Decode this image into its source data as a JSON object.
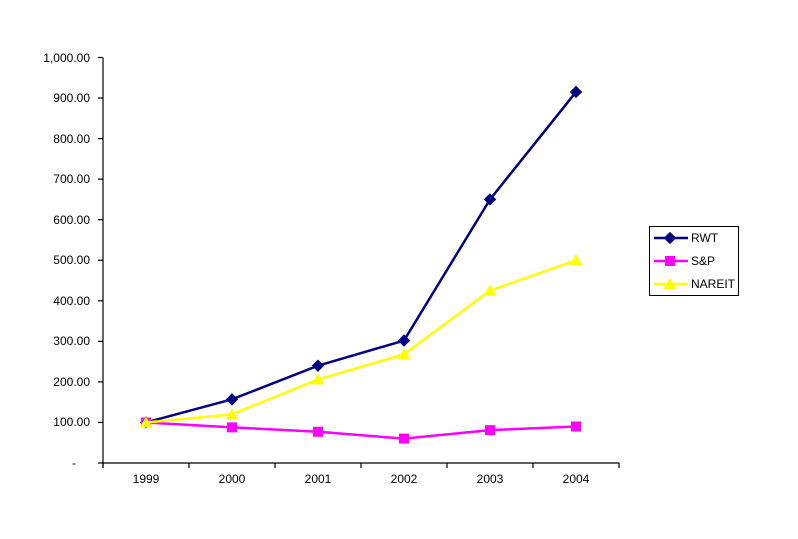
{
  "chart_data": {
    "type": "line",
    "title": "",
    "xlabel": "",
    "ylabel": "",
    "grid": false,
    "background": "#ffffff",
    "axis_color": "#000000",
    "x_categories": [
      "1999",
      "2000",
      "2001",
      "2002",
      "2003",
      "2004"
    ],
    "series": [
      {
        "name": "RWT",
        "color": "#000080",
        "marker": "diamond",
        "values": [
          100,
          157,
          240,
          302,
          650,
          915
        ]
      },
      {
        "name": "S&P",
        "color": "#FF00FF",
        "marker": "square",
        "values": [
          100,
          88,
          77,
          60,
          81,
          90
        ]
      },
      {
        "name": "NAREIT",
        "color": "#FFFF00",
        "marker": "triangle",
        "values": [
          100,
          120,
          206,
          268,
          425,
          500
        ]
      }
    ],
    "y_axis": {
      "min": 0,
      "max": 1000,
      "step": 100,
      "tick_labels": [
        "-",
        "100.00",
        "200.00",
        "300.00",
        "400.00",
        "500.00",
        "600.00",
        "700.00",
        "800.00",
        "900.00",
        "1,000.00"
      ]
    },
    "legend": {
      "position": "right",
      "labels": [
        "RWT",
        "S&P",
        "NAREIT"
      ]
    }
  }
}
